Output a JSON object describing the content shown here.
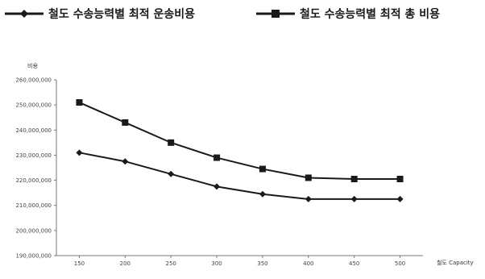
{
  "chart_data": {
    "type": "line",
    "title": "",
    "ylabel": "비용",
    "xlabel": "철도 Capacity",
    "categories": [
      "150",
      "200",
      "250",
      "300",
      "350",
      "400",
      "450",
      "500"
    ],
    "x": [
      150,
      200,
      250,
      300,
      350,
      400,
      450,
      500
    ],
    "ylim": [
      190000000,
      260000000
    ],
    "yticks": [
      190000000,
      200000000,
      210000000,
      220000000,
      230000000,
      240000000,
      250000000,
      260000000
    ],
    "ytick_labels": [
      "190,000,000",
      "200,000,000",
      "210,000,000",
      "220,000,000",
      "230,000,000",
      "240,000,000",
      "250,000,000",
      "260,000,000"
    ],
    "grid": false,
    "legend_position": "top",
    "series": [
      {
        "name": "철도 수송능력별 최적 운송비용",
        "marker": "diamond",
        "color": "#1a1a1a",
        "values": [
          231000000,
          227500000,
          222500000,
          217500000,
          214500000,
          212500000,
          212500000,
          212500000
        ]
      },
      {
        "name": "철도 수송능력별 최적 총 비용",
        "marker": "square",
        "color": "#1a1a1a",
        "values": [
          251000000,
          243000000,
          235000000,
          229000000,
          224500000,
          221000000,
          220500000,
          220500000
        ]
      }
    ]
  }
}
